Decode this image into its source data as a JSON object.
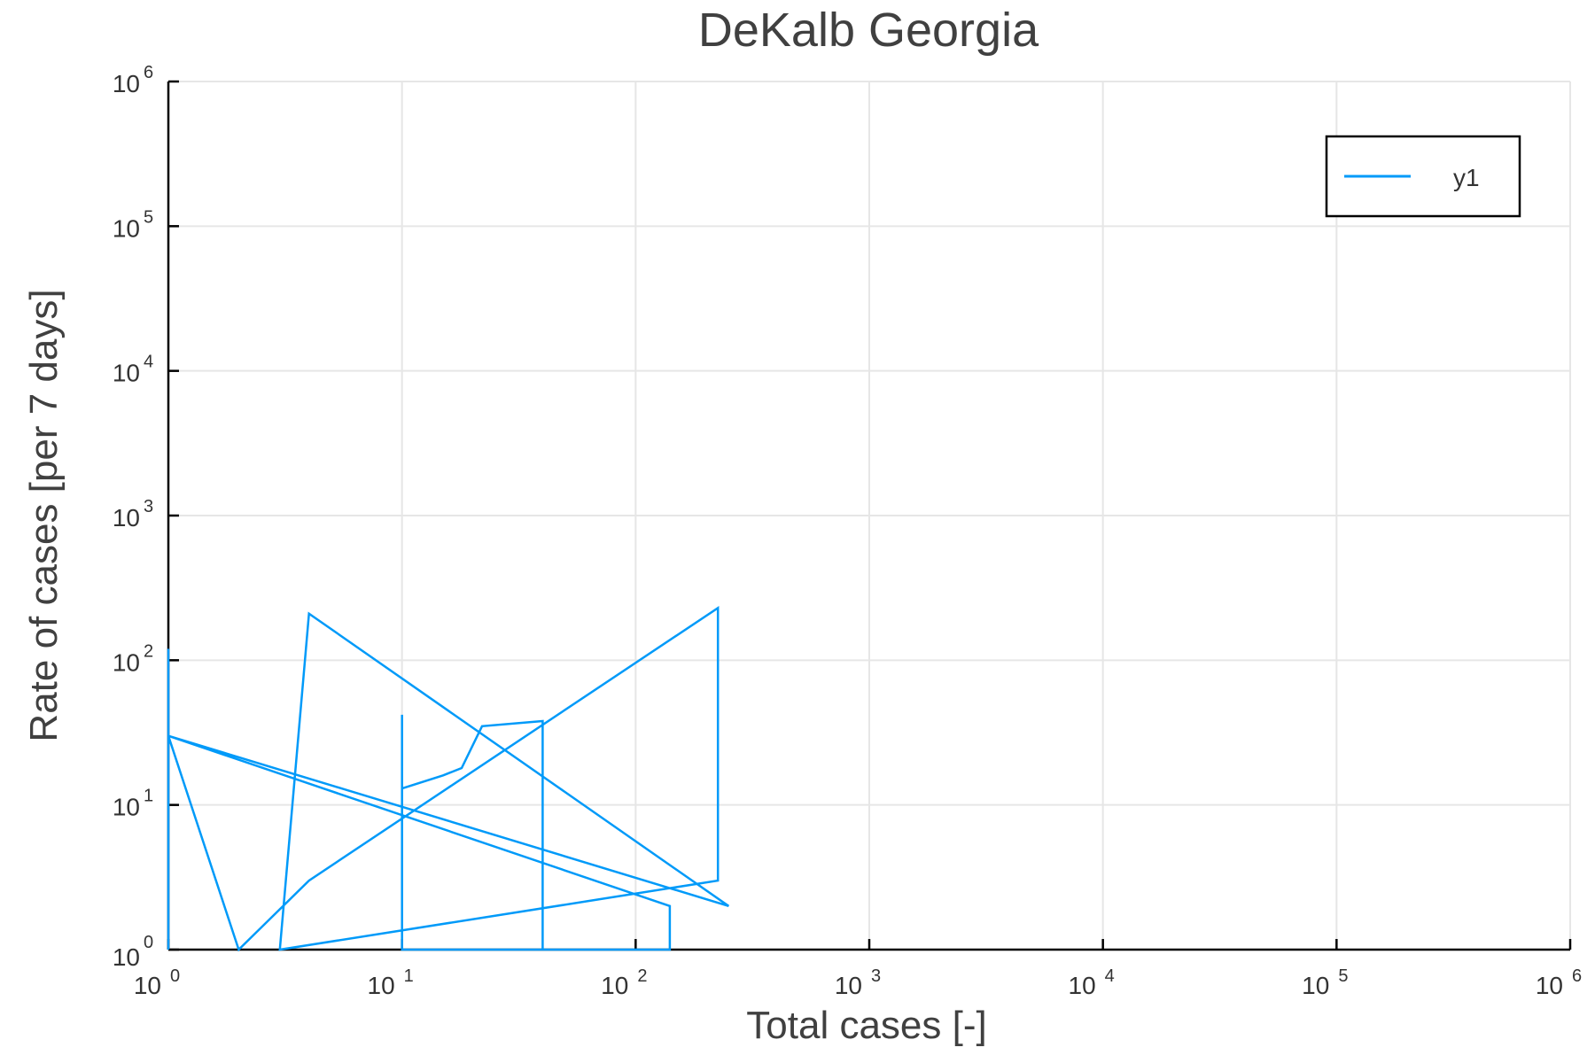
{
  "colors": {
    "series": "#009af9",
    "text": "#404040",
    "grid": "#e6e6e6"
  },
  "chart_data": {
    "type": "line",
    "title": "DeKalb Georgia",
    "xlabel": "Total cases [-]",
    "ylabel": "Rate of cases [per 7 days]",
    "xscale": "log",
    "yscale": "log",
    "xlim": [
      1,
      1000000
    ],
    "ylim": [
      1,
      1000000
    ],
    "xticks": [
      1,
      10,
      100,
      1000,
      10000,
      100000,
      1000000
    ],
    "yticks": [
      1,
      10,
      100,
      1000,
      10000,
      100000,
      1000000
    ],
    "tick_base": "10",
    "tick_exponents": [
      "0",
      "1",
      "2",
      "3",
      "4",
      "5",
      "6"
    ],
    "grid": true,
    "legend": "top-right",
    "series": [
      {
        "name": "y1",
        "x": [
          1,
          1,
          1,
          1,
          2,
          4,
          225,
          225,
          3,
          3,
          4,
          250,
          1,
          140,
          140,
          10,
          10,
          10,
          15,
          18,
          22,
          40,
          40
        ],
        "y": [
          1,
          120,
          1,
          30,
          1,
          3,
          230,
          3,
          1,
          1,
          210,
          2,
          30,
          2,
          1,
          1,
          42,
          13,
          16,
          18,
          35,
          38,
          1
        ]
      }
    ]
  }
}
